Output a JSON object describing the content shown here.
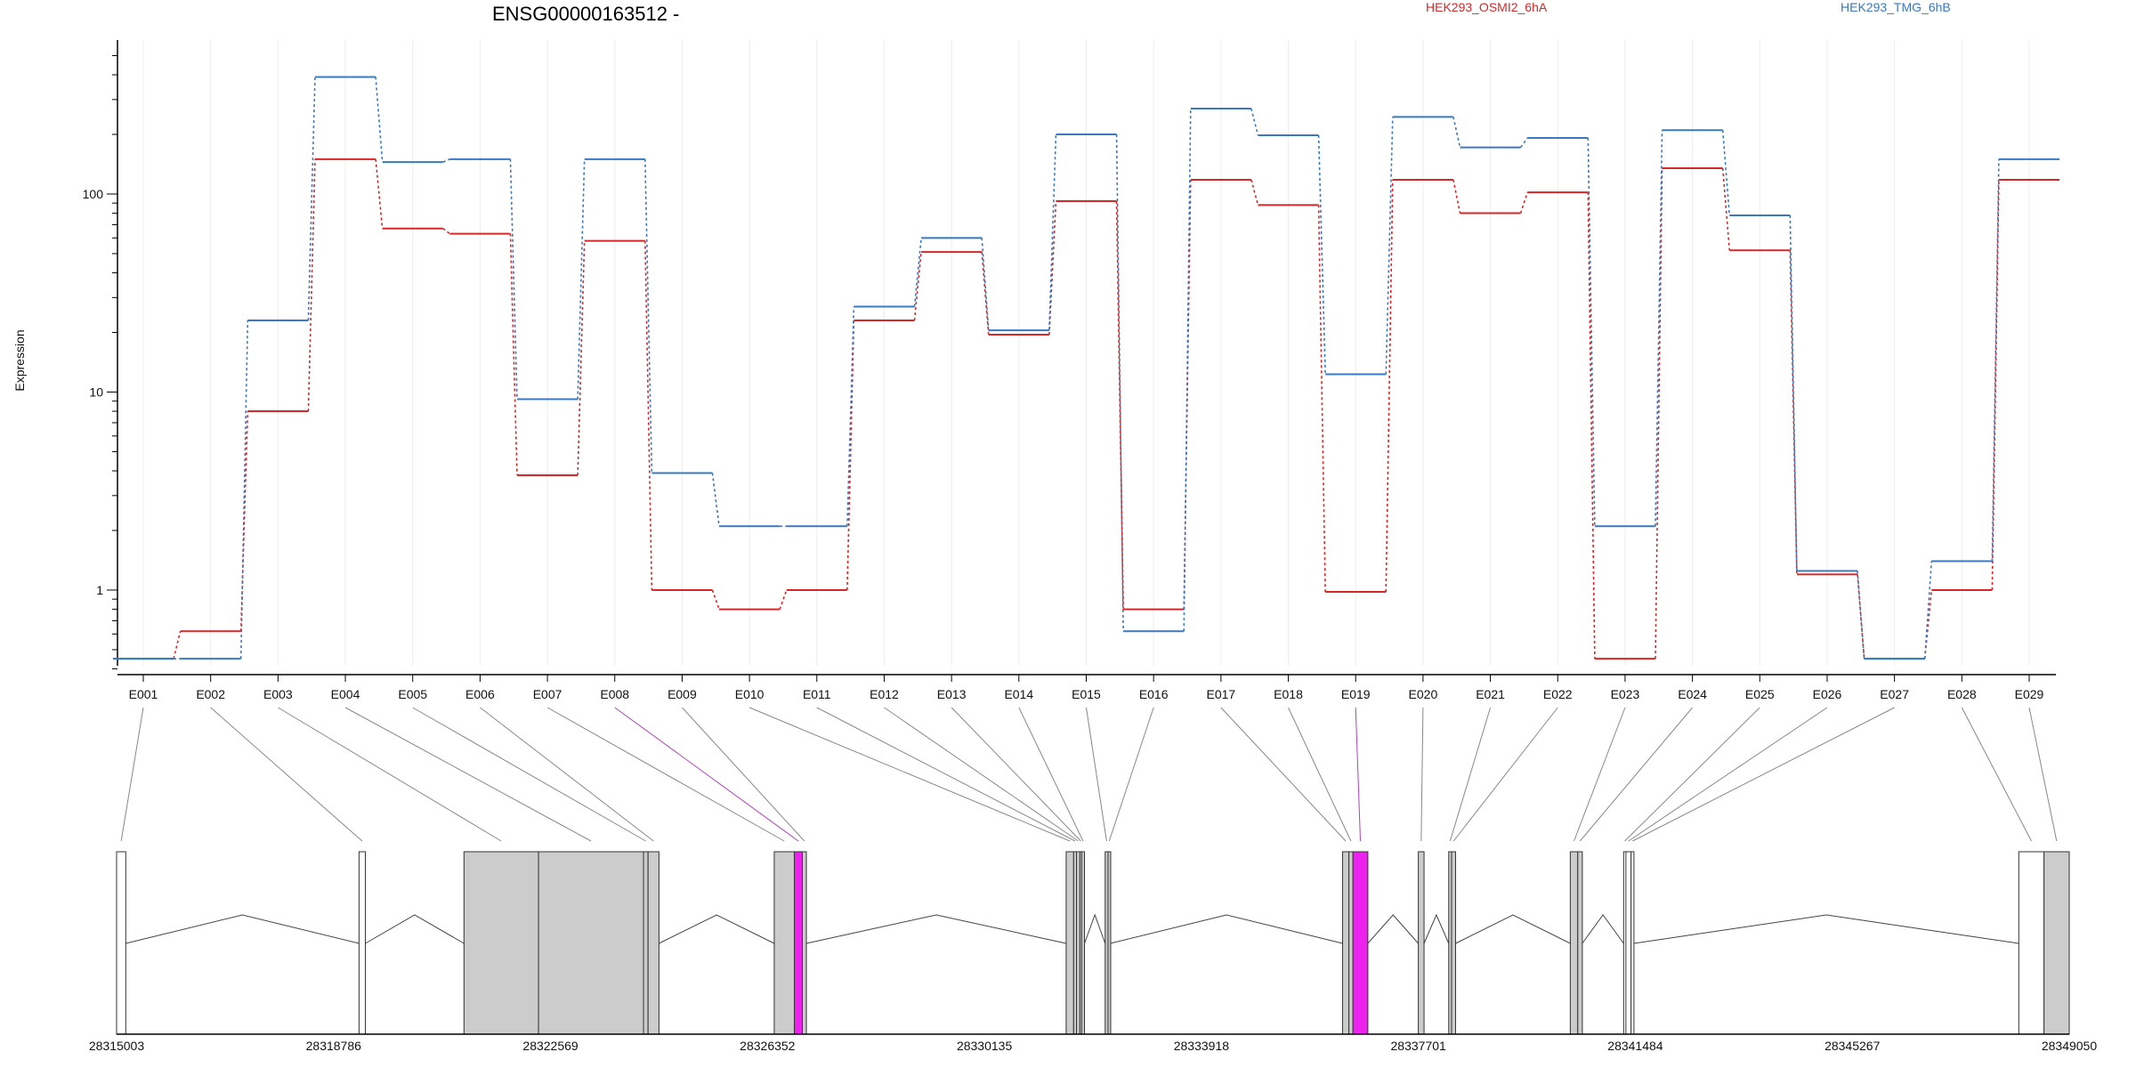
{
  "chart_data": [
    {
      "type": "line",
      "title": "ENSG00000163512 -",
      "xlabel": "",
      "ylabel": "Expression",
      "yscale": "log",
      "ylim": [
        0.4,
        500
      ],
      "yticks": [
        1,
        10,
        100
      ],
      "ytick_labels": [
        "1",
        "10",
        "100"
      ],
      "grid": "vertical",
      "legend_placement": "top",
      "categories": [
        "E001",
        "E002",
        "E003",
        "E004",
        "E005",
        "E006",
        "E007",
        "E008",
        "E009",
        "E010",
        "E011",
        "E012",
        "E013",
        "E014",
        "E015",
        "E016",
        "E017",
        "E018",
        "E019",
        "E020",
        "E021",
        "E022",
        "E023",
        "E024",
        "E025",
        "E026",
        "E027",
        "E028",
        "E029"
      ],
      "series": [
        {
          "name": "HEK293_OSMI2_6hA",
          "color": "#d62728",
          "values": [
            0.45,
            0.62,
            8,
            150,
            67,
            63,
            3.8,
            58,
            1.0,
            0.8,
            1.0,
            23,
            51,
            19.5,
            92,
            0.8,
            118,
            88,
            0.98,
            118,
            80,
            102,
            0.45,
            135,
            52,
            1.2,
            0.45,
            1.0,
            118
          ]
        },
        {
          "name": "HEK293_TMG_6hB",
          "color": "#3a78c0",
          "values": [
            0.45,
            0.45,
            23,
            390,
            145,
            150,
            9.2,
            150,
            3.9,
            2.1,
            2.1,
            27,
            60,
            20.5,
            200,
            0.62,
            270,
            198,
            12.3,
            245,
            172,
            192,
            2.1,
            210,
            78,
            1.25,
            0.45,
            1.4,
            150
          ]
        }
      ]
    },
    {
      "type": "line",
      "title": "",
      "xlabel": "",
      "ylabel": "",
      "xlim": [
        28315003,
        28349050
      ],
      "xticks": [
        28315003,
        28318786,
        28322569,
        28326352,
        28330135,
        28333918,
        28337701,
        28341484,
        28345267,
        28349050
      ],
      "xtick_labels": [
        "28315003",
        "28318786",
        "28322569",
        "28326352",
        "28330135",
        "28333918",
        "28337701",
        "28341484",
        "28345267",
        "28349050"
      ],
      "exons": [
        {
          "id": "E001",
          "start": 28315003,
          "end": 28315163,
          "fill": "#ffffff"
        },
        {
          "id": "E002",
          "start": 28319230,
          "end": 28319340,
          "fill": "#ffffff"
        },
        {
          "id": "E003",
          "start": 28321060,
          "end": 28322360,
          "fill": "#cccccc"
        },
        {
          "id": "E004",
          "start": 28322360,
          "end": 28324190,
          "fill": "#cccccc"
        },
        {
          "id": "E005",
          "start": 28324190,
          "end": 28324270,
          "fill": "#cccccc"
        },
        {
          "id": "E006",
          "start": 28324270,
          "end": 28324460,
          "fill": "#cccccc"
        },
        {
          "id": "E007",
          "start": 28326470,
          "end": 28326820,
          "fill": "#cccccc"
        },
        {
          "id": "E008",
          "start": 28326820,
          "end": 28326960,
          "fill": "#ee22ee"
        },
        {
          "id": "E009",
          "start": 28326960,
          "end": 28327030,
          "fill": "#cccccc"
        },
        {
          "id": "E010",
          "start": 28331560,
          "end": 28331690,
          "fill": "#cccccc"
        },
        {
          "id": "E011",
          "start": 28331690,
          "end": 28331740,
          "fill": "#cccccc"
        },
        {
          "id": "E012",
          "start": 28331740,
          "end": 28331800,
          "fill": "#cccccc"
        },
        {
          "id": "E013",
          "start": 28331800,
          "end": 28331830,
          "fill": "#cccccc"
        },
        {
          "id": "E014",
          "start": 28331830,
          "end": 28331880,
          "fill": "#cccccc"
        },
        {
          "id": "E015",
          "start": 28332240,
          "end": 28332290,
          "fill": "#cccccc"
        },
        {
          "id": "E016",
          "start": 28332290,
          "end": 28332330,
          "fill": "#cccccc"
        },
        {
          "id": "E017",
          "start": 28336380,
          "end": 28336490,
          "fill": "#cccccc"
        },
        {
          "id": "E018",
          "start": 28336490,
          "end": 28336560,
          "fill": "#cccccc"
        },
        {
          "id": "E019",
          "start": 28336560,
          "end": 28336820,
          "fill": "#ee22ee"
        },
        {
          "id": "E020",
          "start": 28337700,
          "end": 28337800,
          "fill": "#cccccc"
        },
        {
          "id": "E021",
          "start": 28338230,
          "end": 28338280,
          "fill": "#cccccc"
        },
        {
          "id": "E022",
          "start": 28338280,
          "end": 28338350,
          "fill": "#cccccc"
        },
        {
          "id": "E023",
          "start": 28340350,
          "end": 28340480,
          "fill": "#cccccc"
        },
        {
          "id": "E024",
          "start": 28340480,
          "end": 28340560,
          "fill": "#cccccc"
        },
        {
          "id": "E025",
          "start": 28341280,
          "end": 28341320,
          "fill": "#ffffff"
        },
        {
          "id": "E026",
          "start": 28341320,
          "end": 28341410,
          "fill": "#ffffff"
        },
        {
          "id": "E027",
          "start": 28341410,
          "end": 28341460,
          "fill": "#ffffff"
        },
        {
          "id": "E028",
          "start": 28348170,
          "end": 28348610,
          "fill": "#ffffff"
        },
        {
          "id": "E029",
          "start": 28348610,
          "end": 28349050,
          "fill": "#cccccc"
        }
      ]
    }
  ]
}
